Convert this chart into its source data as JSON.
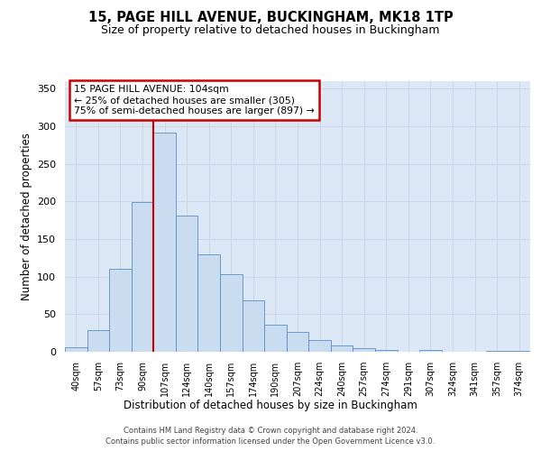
{
  "title": "15, PAGE HILL AVENUE, BUCKINGHAM, MK18 1TP",
  "subtitle": "Size of property relative to detached houses in Buckingham",
  "xlabel": "Distribution of detached houses by size in Buckingham",
  "ylabel": "Number of detached properties",
  "bar_labels": [
    "40sqm",
    "57sqm",
    "73sqm",
    "90sqm",
    "107sqm",
    "124sqm",
    "140sqm",
    "157sqm",
    "174sqm",
    "190sqm",
    "207sqm",
    "224sqm",
    "240sqm",
    "257sqm",
    "274sqm",
    "291sqm",
    "307sqm",
    "324sqm",
    "341sqm",
    "357sqm",
    "374sqm"
  ],
  "bar_heights": [
    6,
    29,
    111,
    199,
    292,
    181,
    130,
    103,
    69,
    36,
    26,
    16,
    8,
    5,
    3,
    0,
    2,
    0,
    0,
    1,
    1
  ],
  "bar_color": "#c9dcf0",
  "bar_edge_color": "#5b8ec4",
  "ylim": [
    0,
    360
  ],
  "yticks": [
    0,
    50,
    100,
    150,
    200,
    250,
    300,
    350
  ],
  "red_line_x": 3.5,
  "property_line_color": "#cc0000",
  "annotation_title": "15 PAGE HILL AVENUE: 104sqm",
  "annotation_line1": "← 25% of detached houses are smaller (305)",
  "annotation_line2": "75% of semi-detached houses are larger (897) →",
  "annotation_box_color": "#cc0000",
  "footer_line1": "Contains HM Land Registry data © Crown copyright and database right 2024.",
  "footer_line2": "Contains public sector information licensed under the Open Government Licence v3.0.",
  "grid_color": "#ccd6e8",
  "background_color": "#dce8f5",
  "fig_bg": "#ffffff"
}
